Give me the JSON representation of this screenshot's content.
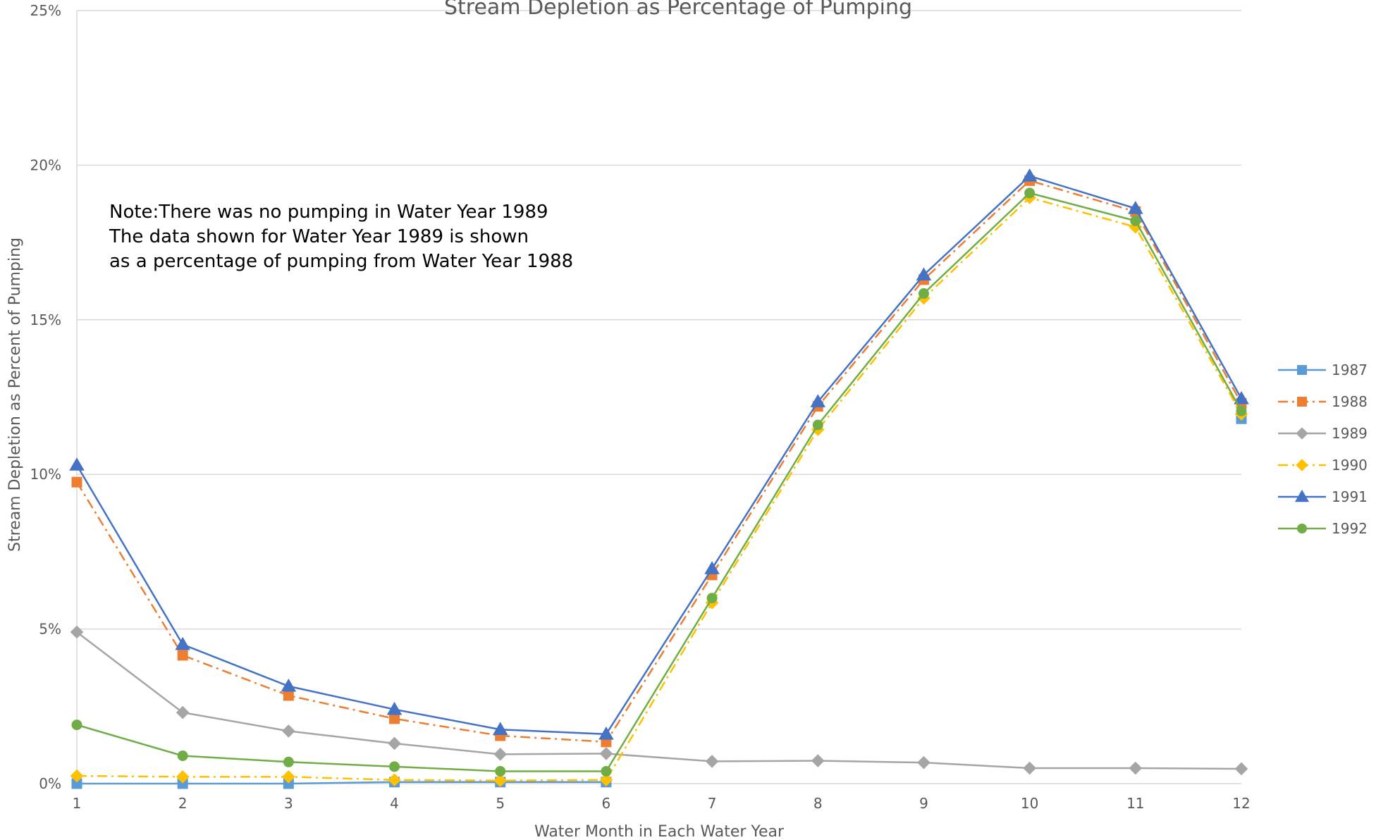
{
  "chart_data": {
    "type": "line",
    "title": "Stream Depletion as Percentage of Pumping",
    "xlabel": "Water Month in Each Water Year",
    "ylabel": "Stream Depletion as Percent of Pumping",
    "x": [
      1,
      2,
      3,
      4,
      5,
      6,
      7,
      8,
      9,
      10,
      11,
      12
    ],
    "x_ticks": [
      "1",
      "2",
      "3",
      "4",
      "5",
      "6",
      "7",
      "8",
      "9",
      "10",
      "11",
      "12"
    ],
    "ylim": [
      0,
      25
    ],
    "y_ticks": [
      0,
      5,
      10,
      15,
      20,
      25
    ],
    "y_tick_labels": [
      "0%",
      "5%",
      "10%",
      "15%",
      "20%",
      "25%"
    ],
    "grid": true,
    "legend_position": "right",
    "note": [
      "Note:There was no pumping in Water Year 1989",
      "The data shown for Water Year 1989 is shown",
      "as a percentage of pumping from Water Year 1988"
    ],
    "series": [
      {
        "name": "1987",
        "color": "#5B9BD5",
        "marker": "square",
        "dash": "solid",
        "values": [
          0.0,
          0.0,
          0.0,
          0.05,
          0.05,
          0.05,
          null,
          null,
          null,
          null,
          null,
          11.8
        ]
      },
      {
        "name": "1988",
        "color": "#ED7D31",
        "marker": "square",
        "dash": "dashdot",
        "values": [
          9.75,
          4.15,
          2.85,
          2.1,
          1.55,
          1.35,
          6.75,
          12.2,
          16.3,
          19.5,
          18.5,
          12.3
        ]
      },
      {
        "name": "1989",
        "color": "#A5A5A5",
        "marker": "diamond",
        "dash": "solid",
        "values": [
          4.9,
          2.3,
          1.7,
          1.3,
          0.95,
          0.97,
          0.72,
          0.74,
          0.68,
          0.5,
          0.5,
          0.48
        ]
      },
      {
        "name": "1990",
        "color": "#FFC000",
        "marker": "diamond",
        "dash": "dashdot",
        "values": [
          0.25,
          0.22,
          0.22,
          0.12,
          0.1,
          0.12,
          5.85,
          11.45,
          15.7,
          18.95,
          18.0,
          11.95
        ]
      },
      {
        "name": "1991",
        "color": "#4472C4",
        "marker": "triangle",
        "dash": "solid",
        "values": [
          10.3,
          4.5,
          3.15,
          2.4,
          1.75,
          1.6,
          6.95,
          12.35,
          16.45,
          19.65,
          18.6,
          12.45
        ]
      },
      {
        "name": "1992",
        "color": "#70AD47",
        "marker": "circle",
        "dash": "solid",
        "values": [
          1.9,
          0.9,
          0.7,
          0.55,
          0.4,
          0.4,
          6.0,
          11.6,
          15.85,
          19.1,
          18.2,
          12.05
        ]
      }
    ]
  }
}
